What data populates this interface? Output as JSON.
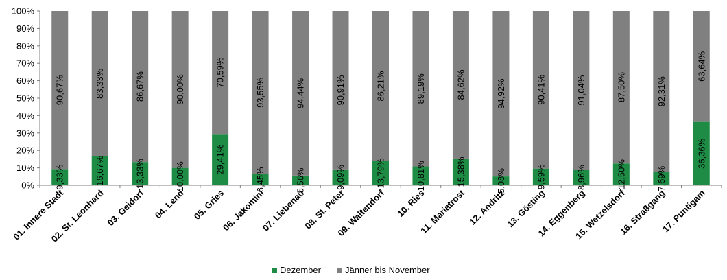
{
  "chart_data": {
    "type": "bar",
    "stacked": true,
    "percent": true,
    "categories": [
      "01. Innere Stadt",
      "02. St. Leonhard",
      "03. Geidorf",
      "04. Lend",
      "05. Gries",
      "06. Jakomini",
      "07. Liebenau",
      "08. St. Peter",
      "09. Waltendorf",
      "10. Ries",
      "11. Mariatrost",
      "12. Andritz",
      "13. Gösting",
      "14. Eggenberg",
      "15. Wetzelsdorf",
      "16. Straßgang",
      "17. Puntigam"
    ],
    "series": [
      {
        "name": "Dezember",
        "color": "#1e8c45",
        "values": [
          9.33,
          16.67,
          13.33,
          10.0,
          29.41,
          6.45,
          5.56,
          9.09,
          13.79,
          10.81,
          15.38,
          5.08,
          9.59,
          8.96,
          12.5,
          7.69,
          36.36
        ],
        "labels": [
          "9,33%",
          "16,67%",
          "13,33%",
          "10,00%",
          "29,41%",
          "6,45%",
          "5,56%",
          "9,09%",
          "13,79%",
          "10,81%",
          "15,38%",
          "5,08%",
          "9,59%",
          "8,96%",
          "12,50%",
          "7,69%",
          "36,36%"
        ]
      },
      {
        "name": "Jänner bis November",
        "color": "#808080",
        "values": [
          90.67,
          83.33,
          86.67,
          90.0,
          70.59,
          93.55,
          94.44,
          90.91,
          86.21,
          89.19,
          84.62,
          94.92,
          90.41,
          91.04,
          87.5,
          92.31,
          63.64
        ],
        "labels": [
          "90,67%",
          "83,33%",
          "86,67%",
          "90,00%",
          "70,59%",
          "93,55%",
          "94,44%",
          "90,91%",
          "86,21%",
          "89,19%",
          "84,62%",
          "94,92%",
          "90,41%",
          "91,04%",
          "87,50%",
          "92,31%",
          "63,64%"
        ]
      }
    ],
    "yticks": [
      "0%",
      "10%",
      "20%",
      "30%",
      "40%",
      "50%",
      "60%",
      "70%",
      "80%",
      "90%",
      "100%"
    ],
    "ylim": [
      0,
      100
    ],
    "grid": false,
    "legend": "bottom-center",
    "title": "",
    "xlabel": "",
    "ylabel": ""
  }
}
